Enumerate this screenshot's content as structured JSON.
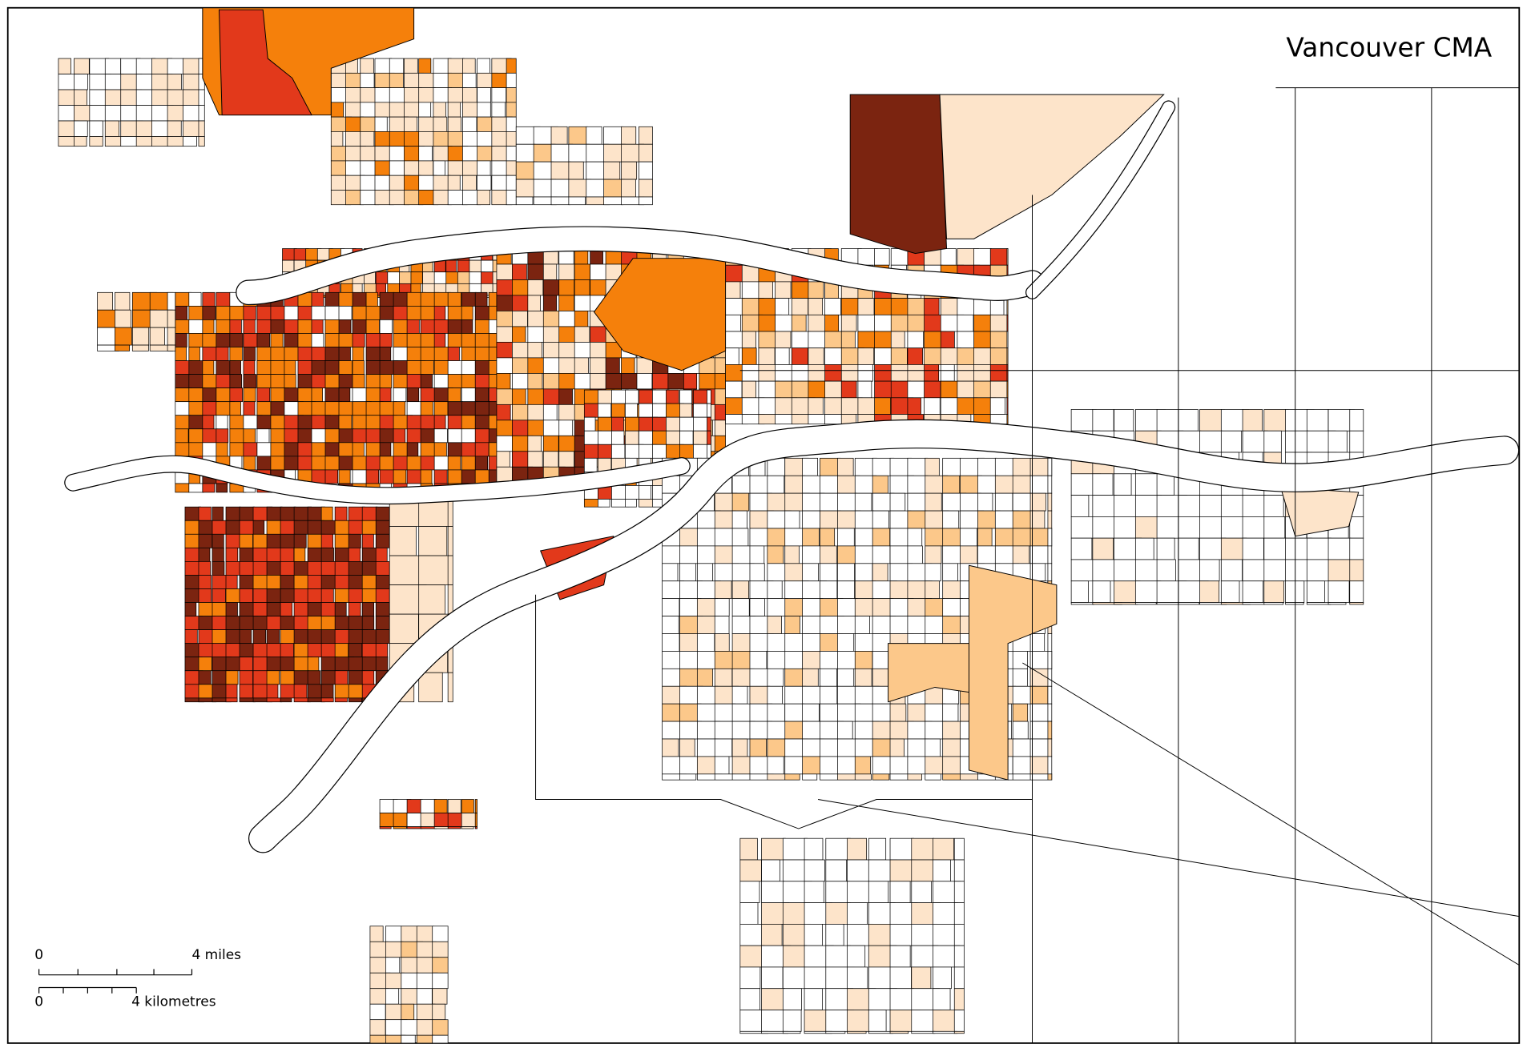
{
  "map": {
    "title": "Vancouver CMA",
    "scale_bar": {
      "miles_start": "0",
      "miles_end": "4 miles",
      "km_start": "0",
      "km_end": "4 kilometres"
    }
  }
}
